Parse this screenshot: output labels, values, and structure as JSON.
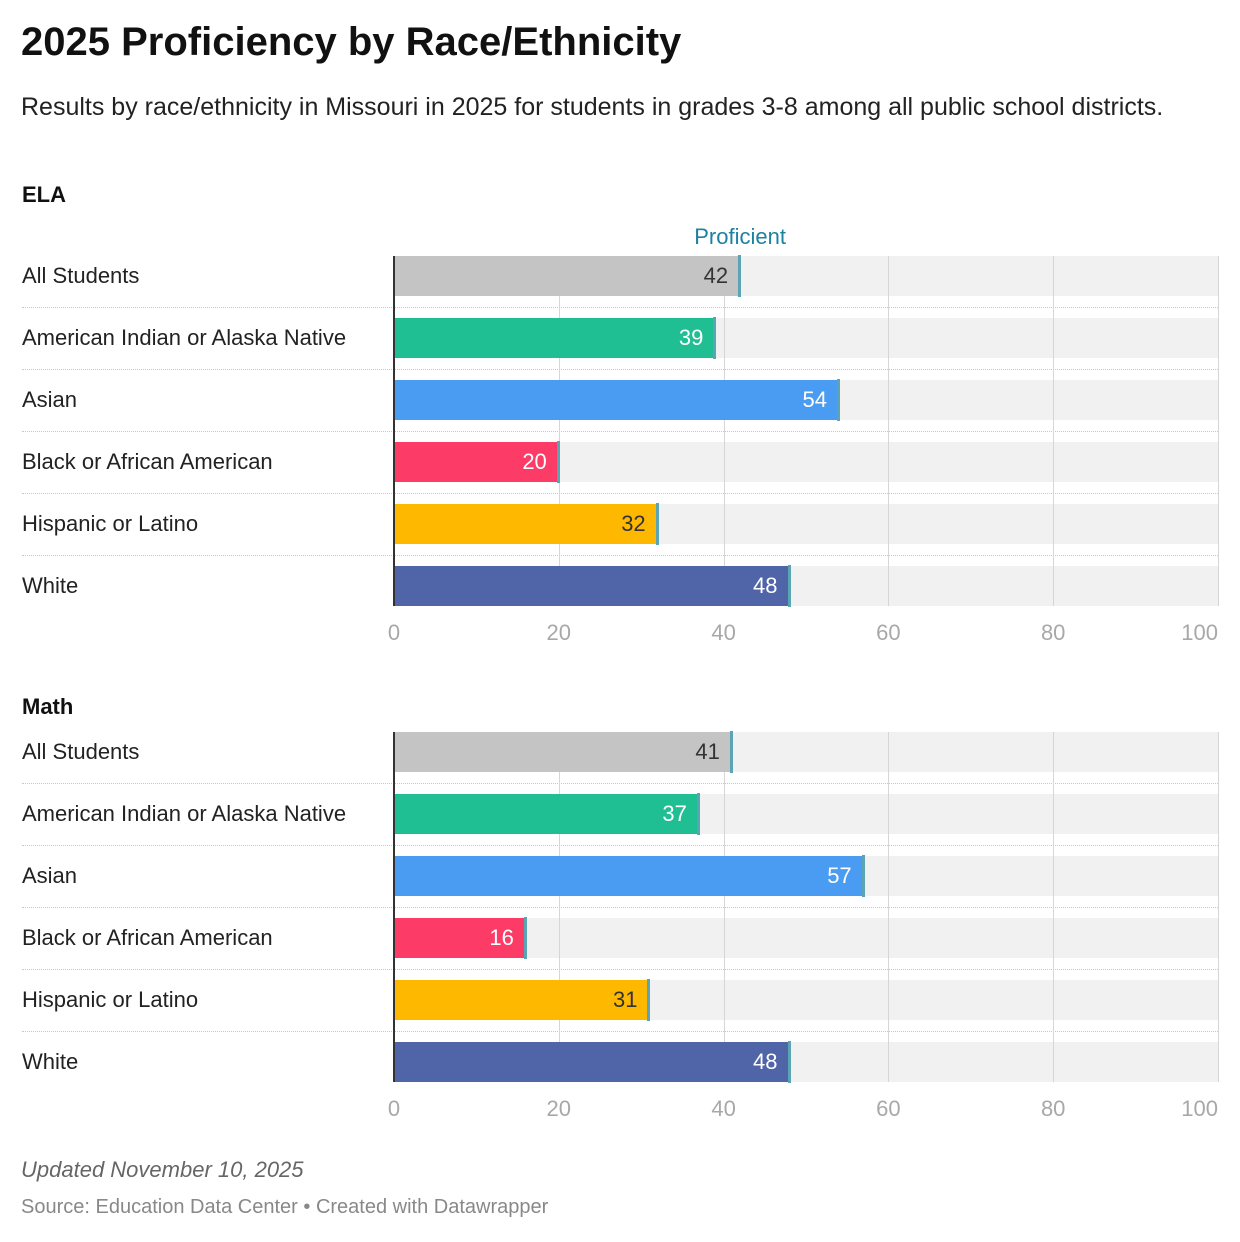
{
  "title": "2025 Proficiency by Race/Ethnicity",
  "subtitle": "Results by race/ethnicity in Missouri in 2025 for students in grades 3-8 among all public school districts.",
  "updated": "Updated November 10, 2025",
  "source": "Source: Education Data Center",
  "credit_sep": " • ",
  "credit": "Created with Datawrapper",
  "colors": {
    "All Students": "#c4c4c4",
    "American Indian or Alaska Native": "#1fbf93",
    "Asian": "#4a9bf2",
    "Black or African American": "#fc3c67",
    "Hispanic or Latino": "#ffb800",
    "White": "#5064a8",
    "marker": "#5aa4b3"
  },
  "chart_data": [
    {
      "type": "bar",
      "title": "ELA",
      "header": "Proficient",
      "categories": [
        "All Students",
        "American Indian or Alaska Native",
        "Asian",
        "Black or African American",
        "Hispanic or Latino",
        "White"
      ],
      "values": [
        42,
        39,
        54,
        20,
        32,
        48
      ],
      "xlim": [
        0,
        100
      ],
      "ticks": [
        "0",
        "20",
        "40",
        "60",
        "80",
        "100"
      ],
      "grid": true
    },
    {
      "type": "bar",
      "title": "Math",
      "header": "",
      "categories": [
        "All Students",
        "American Indian or Alaska Native",
        "Asian",
        "Black or African American",
        "Hispanic or Latino",
        "White"
      ],
      "values": [
        41,
        37,
        57,
        16,
        31,
        48
      ],
      "xlim": [
        0,
        100
      ],
      "ticks": [
        "0",
        "20",
        "40",
        "60",
        "80",
        "100"
      ],
      "grid": true
    }
  ]
}
